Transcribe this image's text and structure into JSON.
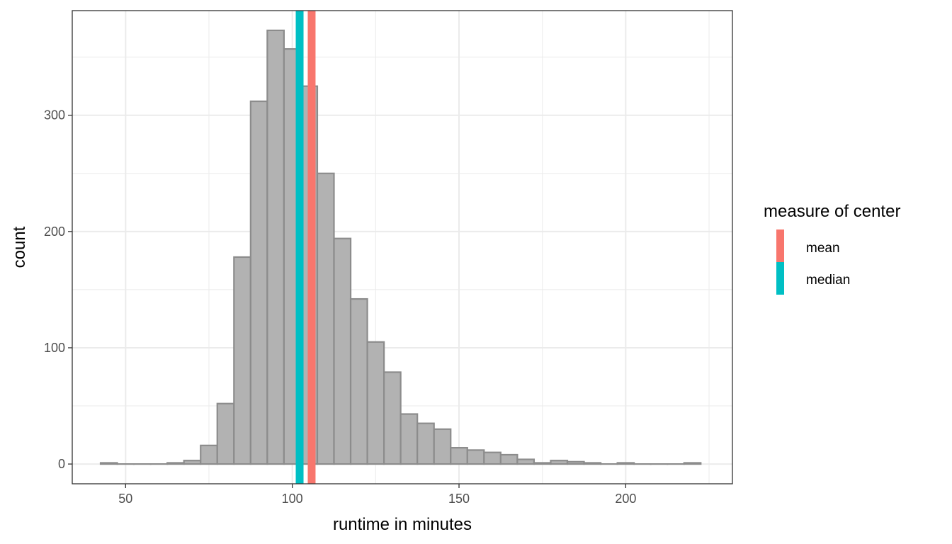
{
  "chart_data": {
    "type": "bar",
    "subtype": "histogram",
    "xlabel": "runtime in minutes",
    "ylabel": "count",
    "xlim": [
      34,
      232
    ],
    "ylim": [
      -17,
      390
    ],
    "x_ticks": [
      50,
      100,
      150,
      200
    ],
    "y_ticks": [
      0,
      100,
      200,
      300
    ],
    "x_ticks_labels": [
      "50",
      "100",
      "150",
      "200"
    ],
    "y_ticks_labels": [
      "0",
      "100",
      "200",
      "300"
    ],
    "x_minor_ticks": [
      75,
      125,
      175,
      225
    ],
    "y_minor_ticks": [
      50,
      150,
      250,
      350
    ],
    "grid": true,
    "bins": {
      "start": 42.5,
      "width": 5,
      "counts": [
        1,
        0,
        0,
        0,
        1,
        3,
        16,
        52,
        178,
        312,
        373,
        357,
        325,
        250,
        194,
        142,
        105,
        79,
        43,
        35,
        30,
        14,
        12,
        10,
        8,
        4,
        1,
        3,
        2,
        1,
        0,
        1,
        0,
        0,
        0,
        1
      ],
      "fill": "#b2b2b2",
      "stroke": "#8c8c8c"
    },
    "vlines": [
      {
        "name": "mean",
        "x": 105.8,
        "color": "#F8766D"
      },
      {
        "name": "median",
        "x": 102.2,
        "color": "#00BFC4"
      }
    ],
    "legend": {
      "title": "measure of center",
      "position": "right",
      "entries": [
        {
          "label": "mean",
          "color": "#F8766D"
        },
        {
          "label": "median",
          "color": "#00BFC4"
        }
      ]
    }
  }
}
